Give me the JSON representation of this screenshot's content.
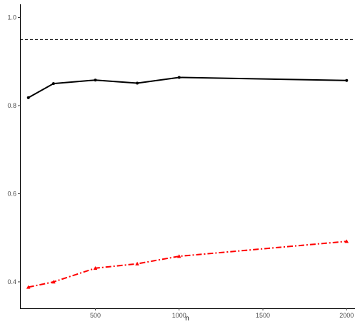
{
  "chart_data": {
    "type": "line",
    "title": "",
    "xlabel": "n",
    "ylabel": "",
    "xlim": [
      50,
      2050
    ],
    "ylim": [
      0.34,
      1.03
    ],
    "x_ticks": [
      500,
      1000,
      1500,
      2000
    ],
    "y_ticks": [
      0.4,
      0.6,
      0.8,
      1.0
    ],
    "x_tick_labels": [
      "500",
      "1000",
      "1500",
      "2000"
    ],
    "y_tick_labels": [
      "0.4",
      "0.6",
      "0.8",
      "1.0"
    ],
    "grid": false,
    "reference_line": {
      "y": 0.95,
      "style": "dashed",
      "color": "#000000"
    },
    "series": [
      {
        "color": "#000000",
        "line_style": "solid",
        "marker": "circle",
        "x": [
          100,
          250,
          500,
          750,
          1000,
          2000
        ],
        "y": [
          0.818,
          0.85,
          0.858,
          0.851,
          0.864,
          0.857
        ]
      },
      {
        "color": "#ff0000",
        "line_style": "dashdot",
        "marker": "triangle",
        "x": [
          100,
          250,
          500,
          750,
          1000,
          2000
        ],
        "y": [
          0.388,
          0.4,
          0.431,
          0.441,
          0.458,
          0.492
        ]
      }
    ]
  }
}
